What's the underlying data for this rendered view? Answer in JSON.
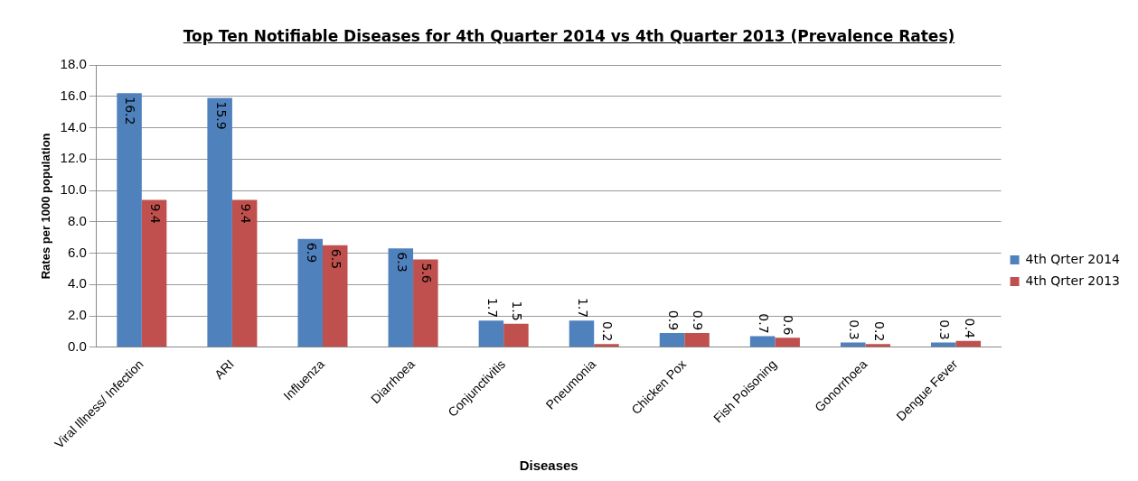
{
  "chart_data": {
    "type": "bar",
    "title": "Top Ten Notifiable Diseases for 4th Quarter 2014 vs 4th Quarter 2013 (Prevalence Rates)",
    "xlabel": "Diseases",
    "ylabel": "Rates per 1000 population",
    "categories": [
      "Viral Illness/ Infection",
      "ARI",
      "Influenza",
      "Diarrhoea",
      "Conjunctivitis",
      "Pneumonia",
      "Chicken Pox",
      "Fish Poisoning",
      "Gonorrhoea",
      "Dengue Fever"
    ],
    "series": [
      {
        "name": "4th Qrter 2014",
        "color": "#4f81bd",
        "values": [
          16.2,
          15.9,
          6.9,
          6.3,
          1.7,
          1.7,
          0.9,
          0.7,
          0.3,
          0.3
        ]
      },
      {
        "name": "4th Qrter 2013",
        "color": "#c0504d",
        "values": [
          9.4,
          9.4,
          6.5,
          5.6,
          1.5,
          0.2,
          0.9,
          0.6,
          0.2,
          0.4
        ]
      }
    ],
    "ylim": [
      0,
      18
    ],
    "yticks": [
      {
        "value": 0,
        "label": "0.0"
      },
      {
        "value": 2,
        "label": "2.0"
      },
      {
        "value": 4,
        "label": "4.0"
      },
      {
        "value": 6,
        "label": "6.0"
      },
      {
        "value": 8,
        "label": "8.0"
      },
      {
        "value": 10,
        "label": "10.0"
      },
      {
        "value": 12,
        "label": "12.0"
      },
      {
        "value": 14,
        "label": "14.0"
      },
      {
        "value": 16,
        "label": "16.0"
      },
      {
        "value": 18,
        "label": "18.0"
      }
    ],
    "grid": "y",
    "legend": "right",
    "data_labels": true
  }
}
